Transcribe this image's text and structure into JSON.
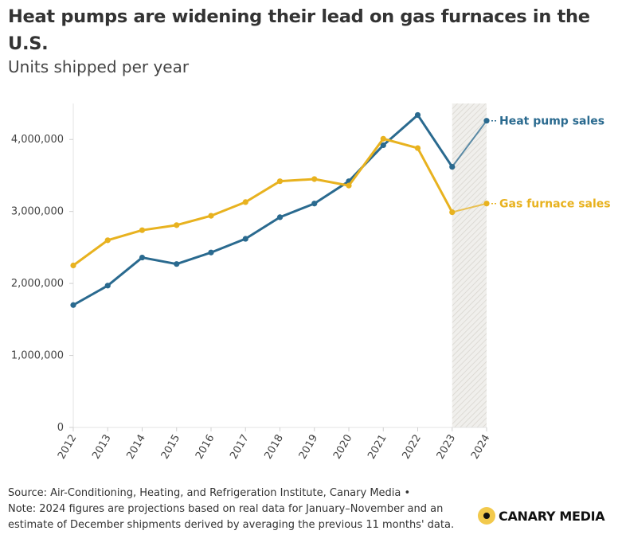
{
  "title": "Heat pumps are widening their lead on gas furnaces in the U.S.",
  "subtitle": "Units shipped per year",
  "footer": {
    "source": "Source: Air-Conditioning, Heating, and Refrigeration Institute, Canary Media •",
    "note": "Note: 2024 figures are projections based on real data for January–November and an estimate of December shipments derived by averaging the previous 11 months' data."
  },
  "brand": {
    "name": "CANARY MEDIA",
    "icon": "canary-logo-icon"
  },
  "chart_data": {
    "type": "line",
    "categories": [
      "2012",
      "2013",
      "2014",
      "2015",
      "2016",
      "2017",
      "2018",
      "2019",
      "2020",
      "2021",
      "2022",
      "2023",
      "2024"
    ],
    "series": [
      {
        "name": "Heat pump sales",
        "color": "#2a6a8f",
        "values": [
          1700000,
          1970000,
          2360000,
          2270000,
          2430000,
          2620000,
          2920000,
          3110000,
          3420000,
          3920000,
          4340000,
          3620000,
          4260000
        ]
      },
      {
        "name": "Gas furnace sales",
        "color": "#e8b21f",
        "values": [
          2250000,
          2600000,
          2740000,
          2810000,
          2940000,
          3130000,
          3420000,
          3450000,
          3360000,
          4010000,
          3880000,
          2990000,
          3110000
        ]
      }
    ],
    "y_ticks": [
      0,
      1000000,
      2000000,
      3000000,
      4000000
    ],
    "y_tick_labels": [
      "0",
      "1,000,000",
      "2,000,000",
      "3,000,000",
      "4,000,000"
    ],
    "ylim": [
      0,
      4500000
    ],
    "projection_shading": {
      "from": "2023",
      "to": "2024"
    },
    "grid": false,
    "legend": "inline-right"
  }
}
